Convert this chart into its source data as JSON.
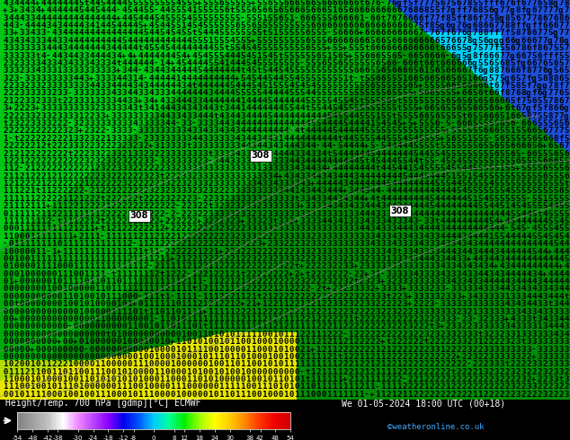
{
  "title_left": "Height/Temp. 700 hPa [gdmp][°C] ECMWF",
  "title_right": "We 01-05-2024 18:00 UTC (00+18)",
  "credit": "©weatheronline.co.uk",
  "colorbar_tick_labels": [
    "-54",
    "-48",
    "-42",
    "-38",
    "-30",
    "-24",
    "-18",
    "-12",
    "-8",
    "0",
    "8",
    "12",
    "18",
    "24",
    "30",
    "38",
    "42",
    "48",
    "54"
  ],
  "colorbar_values": [
    -54,
    -48,
    -42,
    -38,
    -30,
    -24,
    -18,
    -12,
    -8,
    0,
    8,
    12,
    18,
    24,
    30,
    38,
    42,
    48,
    54
  ],
  "colorbar_colors": [
    "#808080",
    "#a0a0a0",
    "#c0c0c0",
    "#ffffff",
    "#ee88ff",
    "#bb44ff",
    "#8800ff",
    "#0000ee",
    "#0055ff",
    "#00ccff",
    "#00ff99",
    "#00ee00",
    "#99ff00",
    "#ffff00",
    "#ffcc00",
    "#ff8800",
    "#ff3300",
    "#ee0000",
    "#cc0000"
  ],
  "bg_color": "#000000",
  "label_color": "#ffffff",
  "credit_color": "#44aaff",
  "figsize": [
    6.34,
    4.9
  ],
  "dpi": 100,
  "map_zones": {
    "green_dark": "#007700",
    "green_bright": "#00cc00",
    "green_mid": "#00aa00",
    "cyan": "#00ccff",
    "blue": "#0066ff",
    "yellow": "#ffff00",
    "yellow_green": "#aaff00"
  }
}
